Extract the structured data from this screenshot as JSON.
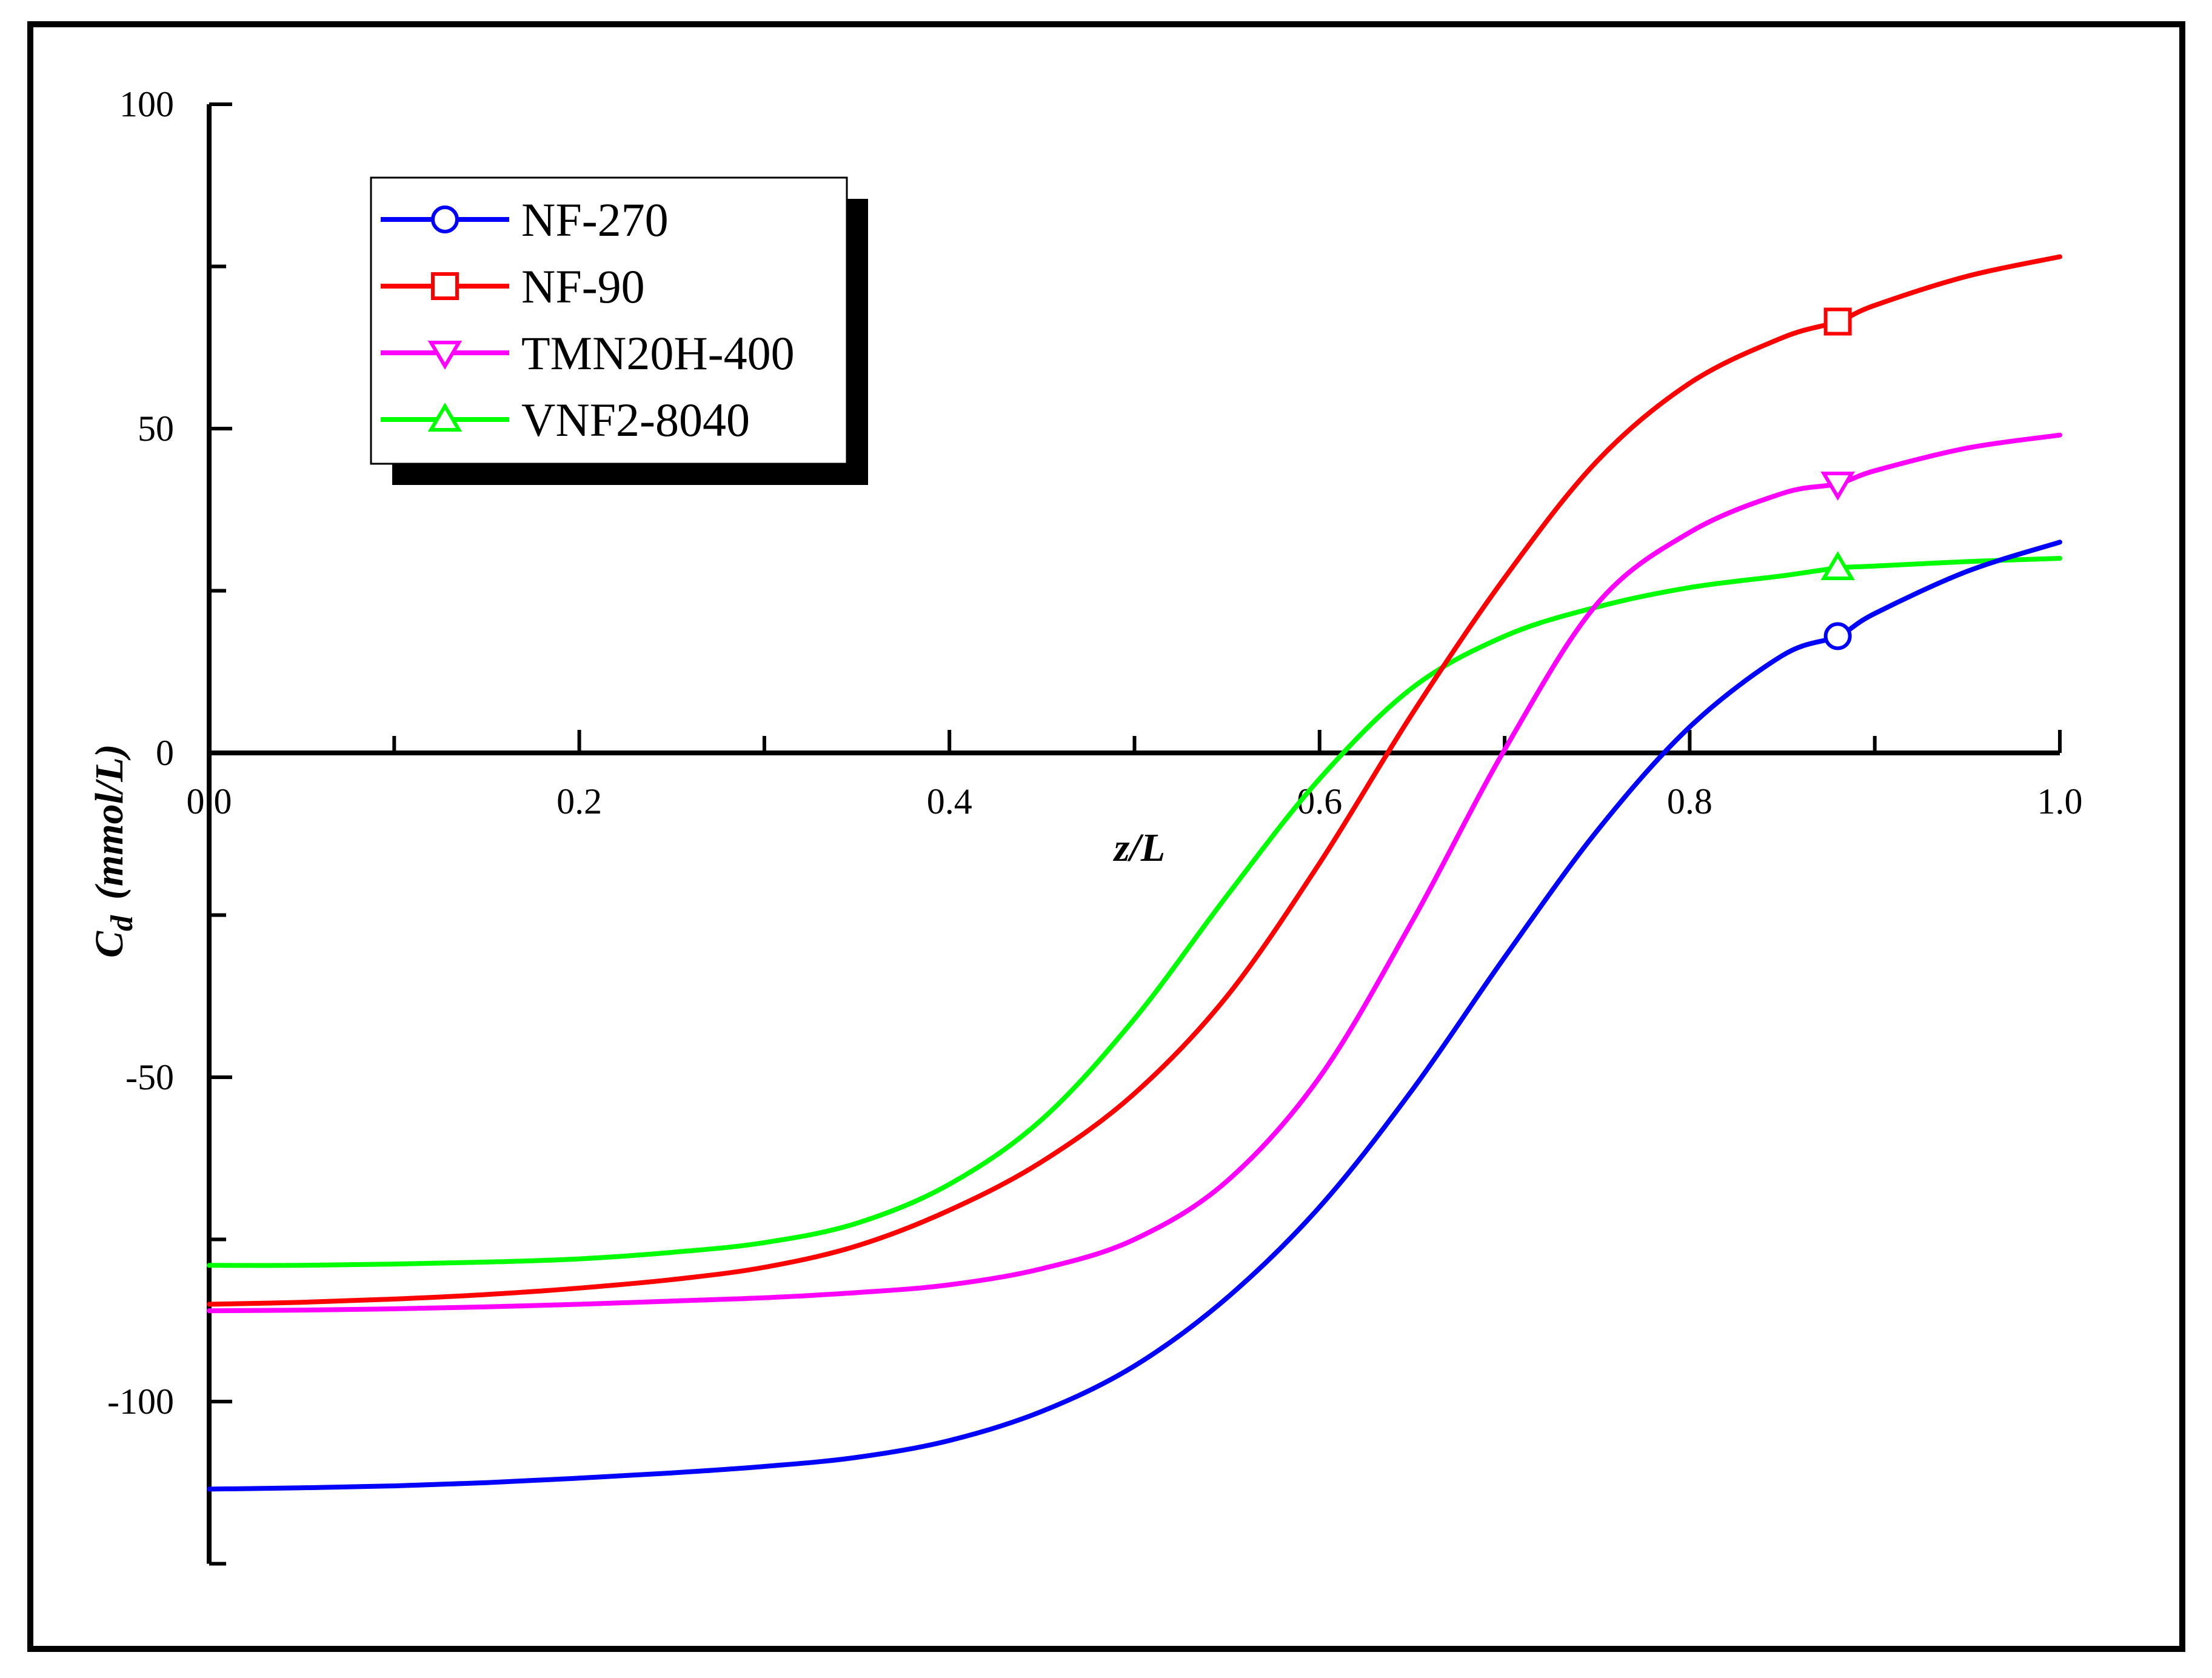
{
  "chart_data": {
    "type": "line",
    "title": "",
    "xlabel": "z/L",
    "ylabel_main": "C",
    "ylabel_sub": "d",
    "ylabel_units": "(mmol/L)",
    "xlim": [
      0.0,
      1.0
    ],
    "ylim": [
      -125,
      100
    ],
    "x_ticks": [
      "0.0",
      "0.2",
      "0.4",
      "0.6",
      "0.8",
      "1.0"
    ],
    "y_ticks": [
      "100",
      "50",
      "0",
      "-50",
      "-100"
    ],
    "grid": false,
    "legend_position": "top-left",
    "x": [
      0.0,
      0.05,
      0.1,
      0.15,
      0.2,
      0.25,
      0.3,
      0.35,
      0.4,
      0.45,
      0.5,
      0.55,
      0.6,
      0.65,
      0.7,
      0.75,
      0.8,
      0.85,
      0.88,
      0.9,
      0.95,
      1.0
    ],
    "series": [
      {
        "name": "NF-270",
        "color": "#0000ff",
        "marker": "circle",
        "marker_x": 0.88,
        "values": [
          -113.5,
          -113.3,
          -113,
          -112.5,
          -111.8,
          -111,
          -110,
          -108.6,
          -106,
          -101.5,
          -94.5,
          -84,
          -70,
          -52,
          -31.5,
          -12,
          4,
          15,
          18,
          21.5,
          28,
          32.5
        ]
      },
      {
        "name": "NF-90",
        "color": "#ff0000",
        "marker": "square",
        "marker_x": 0.88,
        "values": [
          -85,
          -84.7,
          -84.2,
          -83.5,
          -82.5,
          -81.2,
          -79.3,
          -76,
          -70.5,
          -63,
          -52.5,
          -37.5,
          -17,
          6,
          27,
          45,
          57,
          64,
          66.5,
          69,
          73.5,
          76.5
        ]
      },
      {
        "name": "TMN20H-400",
        "color": "#ff00ff",
        "marker": "triangle-down",
        "marker_x": 0.88,
        "values": [
          -86,
          -85.9,
          -85.7,
          -85.4,
          -85,
          -84.5,
          -84,
          -83.2,
          -82,
          -79.5,
          -75,
          -66,
          -50,
          -26,
          0.5,
          23,
          34,
          40,
          41.5,
          43.5,
          47,
          49
        ]
      },
      {
        "name": "VNF2-8040",
        "color": "#00ff00",
        "marker": "triangle-up",
        "marker_x": 0.88,
        "values": [
          -79,
          -79,
          -78.8,
          -78.5,
          -78,
          -77,
          -75.5,
          -72.5,
          -66.5,
          -56.5,
          -41,
          -22,
          -4,
          10,
          18,
          22.5,
          25.5,
          27.3,
          28.5,
          28.8,
          29.5,
          30
        ]
      }
    ]
  }
}
